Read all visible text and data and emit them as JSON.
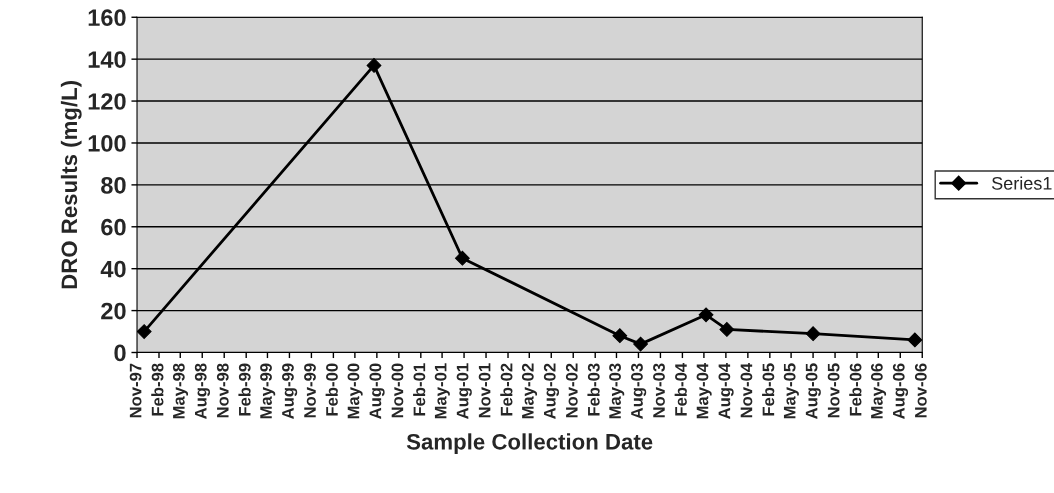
{
  "chart_data": {
    "type": "line",
    "xlabel": "Sample Collection Date",
    "ylabel": "DRO Results (mg/L)",
    "x": [
      "1997-12-01",
      "2000-07-20",
      "2001-07-25",
      "2003-05-15",
      "2003-08-10",
      "2004-05-10",
      "2004-08-05",
      "2005-08-01",
      "2006-10-01"
    ],
    "series": [
      {
        "name": "Series1",
        "color": "#000000",
        "values": [
          10,
          137,
          45,
          8,
          4,
          18,
          11,
          9,
          6
        ]
      }
    ],
    "xlim": [
      "1997-11-01",
      "2006-11-01"
    ],
    "xticks": [
      {
        "value": "1997-11-01",
        "label": "Nov-97"
      },
      {
        "value": "1998-02-01",
        "label": "Feb-98"
      },
      {
        "value": "1998-05-01",
        "label": "May-98"
      },
      {
        "value": "1998-08-01",
        "label": "Aug-98"
      },
      {
        "value": "1998-11-01",
        "label": "Nov-98"
      },
      {
        "value": "1999-02-01",
        "label": "Feb-99"
      },
      {
        "value": "1999-05-01",
        "label": "May-99"
      },
      {
        "value": "1999-08-01",
        "label": "Aug-99"
      },
      {
        "value": "1999-11-01",
        "label": "Nov-99"
      },
      {
        "value": "2000-02-01",
        "label": "Feb-00"
      },
      {
        "value": "2000-05-01",
        "label": "May-00"
      },
      {
        "value": "2000-08-01",
        "label": "Aug-00"
      },
      {
        "value": "2000-11-01",
        "label": "Nov-00"
      },
      {
        "value": "2001-02-01",
        "label": "Feb-01"
      },
      {
        "value": "2001-05-01",
        "label": "May-01"
      },
      {
        "value": "2001-08-01",
        "label": "Aug-01"
      },
      {
        "value": "2001-11-01",
        "label": "Nov-01"
      },
      {
        "value": "2002-02-01",
        "label": "Feb-02"
      },
      {
        "value": "2002-05-01",
        "label": "May-02"
      },
      {
        "value": "2002-08-01",
        "label": "Aug-02"
      },
      {
        "value": "2002-11-01",
        "label": "Nov-02"
      },
      {
        "value": "2003-02-01",
        "label": "Feb-03"
      },
      {
        "value": "2003-05-01",
        "label": "May-03"
      },
      {
        "value": "2003-08-01",
        "label": "Aug-03"
      },
      {
        "value": "2003-11-01",
        "label": "Nov-03"
      },
      {
        "value": "2004-02-01",
        "label": "Feb-04"
      },
      {
        "value": "2004-05-01",
        "label": "May-04"
      },
      {
        "value": "2004-08-01",
        "label": "Aug-04"
      },
      {
        "value": "2004-11-01",
        "label": "Nov-04"
      },
      {
        "value": "2005-02-01",
        "label": "Feb-05"
      },
      {
        "value": "2005-05-01",
        "label": "May-05"
      },
      {
        "value": "2005-08-01",
        "label": "Aug-05"
      },
      {
        "value": "2005-11-01",
        "label": "Nov-05"
      },
      {
        "value": "2006-02-01",
        "label": "Feb-06"
      },
      {
        "value": "2006-05-01",
        "label": "May-06"
      },
      {
        "value": "2006-08-01",
        "label": "Aug-06"
      },
      {
        "value": "2006-11-01",
        "label": "Nov-06"
      }
    ],
    "ylim": [
      0,
      160
    ],
    "yticks": [
      0,
      20,
      40,
      60,
      80,
      100,
      120,
      140,
      160
    ],
    "grid": "y",
    "legend": "right",
    "marker": "diamond",
    "line_style": "solid"
  }
}
